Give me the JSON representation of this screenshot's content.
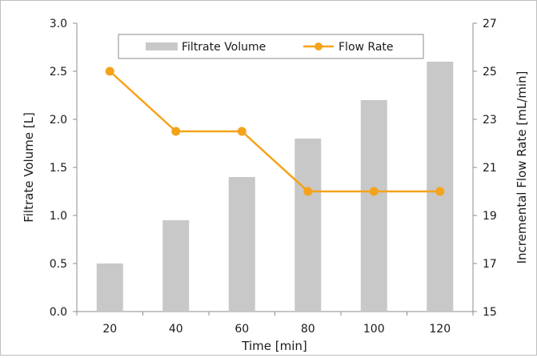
{
  "chart_data": {
    "type": "bar+line",
    "categories": [
      "20",
      "40",
      "60",
      "80",
      "100",
      "120"
    ],
    "xlabel": "Time [min]",
    "ylabel_left": "Filtrate Volume [L]",
    "ylabel_right": "Incremental Flow Rate [mL/min]",
    "ylim_left": [
      0.0,
      3.0
    ],
    "yticks_left": [
      "0.0",
      "0.5",
      "1.0",
      "1.5",
      "2.0",
      "2.5",
      "3.0"
    ],
    "ylim_right": [
      15,
      27
    ],
    "yticks_right": [
      "15",
      "17",
      "19",
      "21",
      "23",
      "25",
      "27"
    ],
    "grid": false,
    "legend_position": "top",
    "series": [
      {
        "name": "Filtrate Volume",
        "type": "bar",
        "axis": "left",
        "color": "#c8c8c8",
        "values": [
          0.5,
          0.95,
          1.4,
          1.8,
          2.2,
          2.6
        ]
      },
      {
        "name": "Flow Rate",
        "type": "line",
        "axis": "right",
        "color": "#f5a31a",
        "values": [
          25.0,
          22.5,
          22.5,
          20.0,
          20.0,
          20.0
        ]
      }
    ]
  }
}
